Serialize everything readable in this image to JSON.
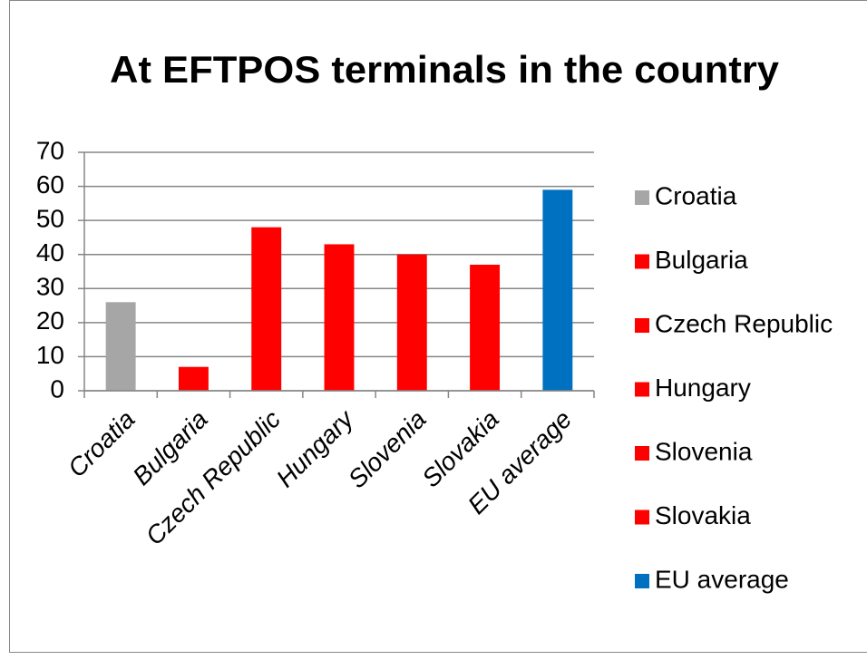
{
  "chart_data": {
    "type": "bar",
    "title": "At EFTPOS terminals in the country",
    "categories": [
      "Croatia",
      "Bulgaria",
      "Czech Republic",
      "Hungary",
      "Slovenia",
      "Slovakia",
      "EU average"
    ],
    "values": [
      26,
      7,
      48,
      43,
      40,
      37,
      59
    ],
    "colors": [
      "#a6a6a6",
      "#ff0000",
      "#ff0000",
      "#ff0000",
      "#ff0000",
      "#ff0000",
      "#0070c0"
    ],
    "ylim": [
      0,
      70
    ],
    "yticks": [
      0,
      10,
      20,
      30,
      40,
      50,
      60,
      70
    ],
    "grid": true,
    "legend": "right"
  }
}
